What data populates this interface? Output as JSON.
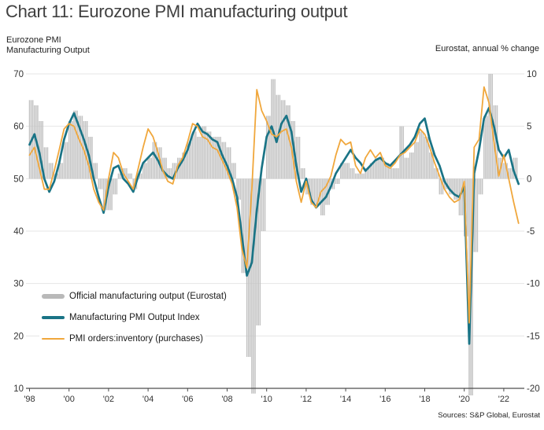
{
  "title": "Chart 11: Eurozone PMI manufacturing output",
  "left_header": {
    "line1": "Eurozone PMI",
    "line2": "Manufacturing Output"
  },
  "right_header": "Eurostat, annual % change",
  "source": "Sources: S&P Global, Eurostat",
  "legend": [
    {
      "label": "Official manufacturing output (Eurostat)",
      "series": "official_output_bars"
    },
    {
      "label": "Manufacturing PMI Output Index",
      "series": "pmi_output_line"
    },
    {
      "label": "PMI orders:inventory (purchases)",
      "series": "orders_inventory_line"
    }
  ],
  "colors": {
    "bars": "#c3c3c3",
    "bars_legend": "#b9b9b9",
    "pmi_output": "#1a7486",
    "orders_inventory": "#f0a73c",
    "grid": "#e4e4e4",
    "axis": "#4d4d4d",
    "tick_text": "#333333",
    "title_text": "#404040"
  },
  "chart_data": {
    "type": "bar",
    "subtype": "bar+line combo time series, quarterly estimates of monthly data",
    "title": "Chart 11: Eurozone PMI manufacturing output",
    "x_start": 1998.0,
    "x_step": 0.25,
    "x_axis": {
      "tick_years": [
        1998,
        2000,
        2002,
        2004,
        2006,
        2008,
        2010,
        2012,
        2014,
        2016,
        2018,
        2020,
        2022
      ],
      "tick_labels": [
        "'98",
        "'00",
        "'02",
        "'04",
        "'06",
        "'08",
        "'10",
        "'12",
        "'14",
        "'16",
        "'18",
        "'20",
        "'22"
      ]
    },
    "left_axis": {
      "title": "Eurozone PMI Manufacturing Output",
      "min": 10,
      "max": 70,
      "ticks": [
        70,
        60,
        50,
        40,
        30,
        20,
        10
      ],
      "tick_labels": [
        "70",
        "60",
        "50",
        "40",
        "30",
        "20",
        "10"
      ]
    },
    "right_axis": {
      "title": "Eurostat, annual % change",
      "min": -20,
      "max": 10,
      "ticks": [
        10,
        5,
        0,
        -5,
        -10,
        -15,
        -20
      ],
      "tick_labels": [
        "10",
        "5",
        "0",
        "-5",
        "-10",
        "-15",
        "-20"
      ]
    },
    "grid": "horizontal only",
    "legend_position": "inside lower-left",
    "series": [
      {
        "name": "Official manufacturing output (Eurostat)",
        "type": "bar",
        "axis": "right",
        "values": [
          7.5,
          7,
          5.5,
          3,
          1.5,
          0.5,
          1.5,
          3.5,
          5.5,
          6.5,
          6,
          5.5,
          4,
          1.5,
          -1,
          -3,
          -3,
          -1.5,
          0.5,
          1,
          0.5,
          -1,
          0.5,
          1.5,
          2,
          3.5,
          3,
          2,
          1,
          1.5,
          2,
          2.5,
          3.5,
          4.5,
          4,
          5,
          4.5,
          4,
          4,
          3.5,
          3,
          1.5,
          -2,
          -9,
          -17,
          -20.5,
          -14,
          -5,
          6,
          9.5,
          8,
          7.5,
          7,
          5.5,
          4,
          1,
          -1.5,
          -2.5,
          -2.5,
          -3.5,
          -2.5,
          -1,
          -0.5,
          1.5,
          1.5,
          1,
          0.5,
          0.5,
          1,
          1.5,
          2,
          2,
          1.5,
          1,
          1,
          5,
          2,
          2.5,
          3.5,
          4.5,
          4,
          2.5,
          1,
          -1.5,
          -1,
          -1.5,
          -2,
          -3.5,
          -5.5,
          -27,
          -7,
          -1.5,
          6,
          10,
          7,
          2,
          1.5,
          1,
          2,
          null
        ]
      },
      {
        "name": "Manufacturing PMI Output Index",
        "type": "line",
        "axis": "left",
        "values": [
          56.5,
          58.5,
          55,
          50,
          47.5,
          49.5,
          53,
          57.5,
          60.5,
          62.5,
          60,
          57.5,
          54.5,
          50,
          46.5,
          43.5,
          48.5,
          52,
          52.5,
          50,
          49,
          47.5,
          50.5,
          53,
          54,
          55,
          53.5,
          51.5,
          50.5,
          50,
          52,
          53.5,
          55.5,
          58.5,
          60.5,
          59,
          58.5,
          57.5,
          57,
          54.5,
          52.5,
          50,
          46.5,
          39,
          31.5,
          34,
          44,
          52,
          58,
          60,
          57,
          60.5,
          62,
          59,
          52.5,
          47.5,
          50,
          46,
          44.5,
          45.5,
          46.5,
          48.5,
          51,
          52.5,
          54,
          55.5,
          54,
          53,
          51.5,
          52.5,
          53.5,
          54,
          53,
          52.5,
          53.5,
          54.5,
          55.5,
          56.5,
          58,
          60.5,
          61.5,
          57.5,
          54.5,
          52.5,
          49.5,
          48,
          47,
          46.5,
          48.5,
          18.5,
          51,
          55.5,
          61.5,
          63.5,
          60,
          55.5,
          54,
          55.5,
          51.5,
          49
        ]
      },
      {
        "name": "PMI orders:inventory (purchases)",
        "type": "line",
        "axis": "left",
        "values": [
          54.5,
          56,
          52,
          48,
          48,
          51.5,
          55.5,
          59.5,
          60.5,
          60,
          57.5,
          55.5,
          52.5,
          48,
          45.5,
          44,
          50,
          55,
          54,
          51,
          49.5,
          48,
          52,
          56,
          59.5,
          58,
          55,
          51.5,
          49.5,
          49,
          52.5,
          54,
          57,
          60.5,
          60,
          58,
          57.5,
          56,
          55.5,
          53.5,
          51.5,
          49,
          44.5,
          36.5,
          33,
          48,
          67,
          63,
          61,
          58.5,
          58,
          59,
          59.5,
          56,
          49.5,
          45.5,
          49.5,
          45.5,
          44.5,
          47.5,
          48.5,
          50.5,
          54.5,
          57.5,
          56.5,
          57,
          52.5,
          51,
          54,
          55.5,
          54,
          55,
          52.5,
          52,
          53,
          54.5,
          55,
          56,
          57,
          59.5,
          58.5,
          56,
          53,
          50.5,
          48,
          46.5,
          45.5,
          46,
          49.5,
          22.5,
          56,
          57.5,
          67.5,
          64.5,
          57,
          50.5,
          54.5,
          50,
          45.5,
          41.5
        ]
      }
    ]
  }
}
